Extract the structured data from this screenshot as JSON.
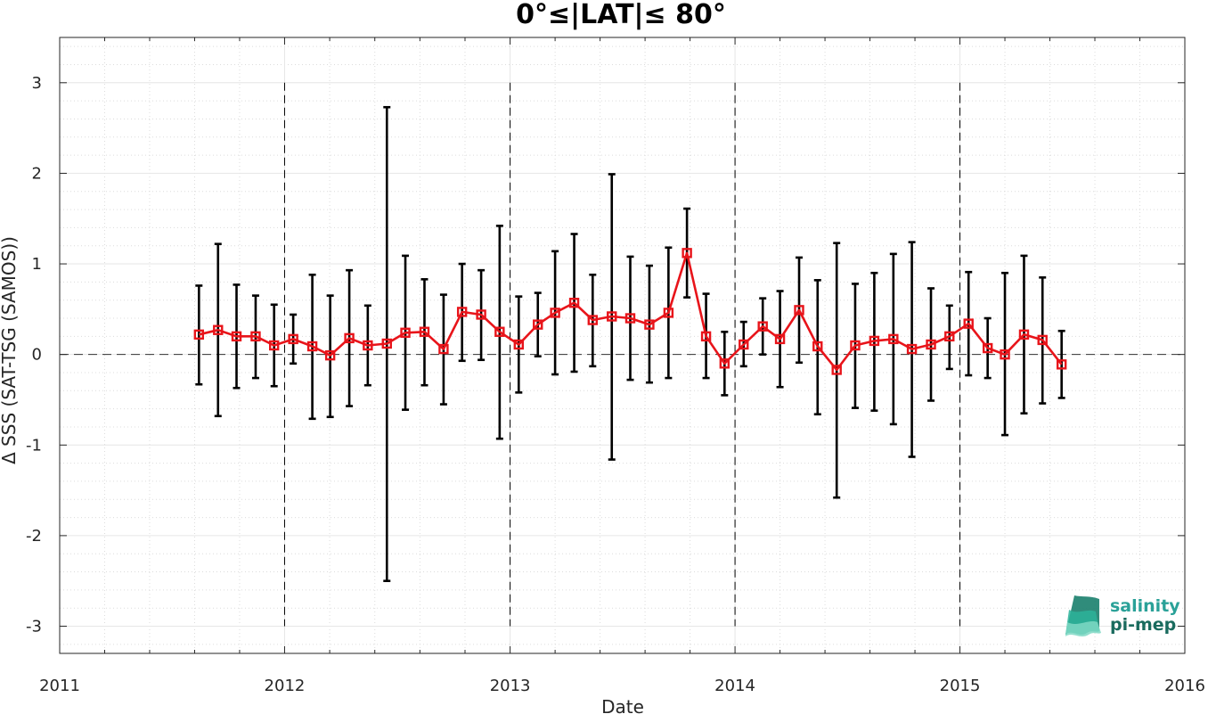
{
  "chart_data": {
    "type": "line",
    "title": "0°≤|LAT|≤ 80°",
    "xlabel": "Date",
    "ylabel": "Δ SSS (SAT-TSG (SAMOS))",
    "xlim": [
      "2011-01-01",
      "2016-01-01"
    ],
    "ylim": [
      -3.3,
      3.5
    ],
    "x_ticks": [
      "2011",
      "2012",
      "2013",
      "2014",
      "2015",
      "2016"
    ],
    "y_ticks": [
      -3,
      -2,
      -1,
      0,
      1,
      2,
      3
    ],
    "grid": true,
    "minor_grid": true,
    "zero_line": true,
    "year_separators": [
      "2012",
      "2013",
      "2014",
      "2015"
    ],
    "series": [
      {
        "color": "#e8141a",
        "marker": "square",
        "errorbar_color": "#000000",
        "x": [
          "2011-08-15",
          "2011-09-15",
          "2011-10-15",
          "2011-11-15",
          "2011-12-15",
          "2012-01-15",
          "2012-02-15",
          "2012-03-15",
          "2012-04-15",
          "2012-05-15",
          "2012-06-15",
          "2012-07-15",
          "2012-08-15",
          "2012-09-15",
          "2012-10-15",
          "2012-11-15",
          "2012-12-15",
          "2013-01-15",
          "2013-02-15",
          "2013-03-15",
          "2013-04-15",
          "2013-05-15",
          "2013-06-15",
          "2013-07-15",
          "2013-08-15",
          "2013-09-15",
          "2013-10-15",
          "2013-11-15",
          "2013-12-15",
          "2014-01-15",
          "2014-02-15",
          "2014-03-15",
          "2014-04-15",
          "2014-05-15",
          "2014-06-15",
          "2014-07-15",
          "2014-08-15",
          "2014-09-15",
          "2014-10-15",
          "2014-11-15",
          "2014-12-15",
          "2015-01-15",
          "2015-02-15",
          "2015-03-15",
          "2015-04-15",
          "2015-05-15",
          "2015-06-15"
        ],
        "values": [
          0.22,
          0.27,
          0.2,
          0.2,
          0.1,
          0.17,
          0.09,
          -0.01,
          0.18,
          0.1,
          0.12,
          0.24,
          0.25,
          0.06,
          0.47,
          0.44,
          0.25,
          0.11,
          0.33,
          0.46,
          0.57,
          0.38,
          0.42,
          0.4,
          0.33,
          0.46,
          1.12,
          0.2,
          -0.1,
          0.11,
          0.31,
          0.17,
          0.49,
          0.09,
          -0.17,
          0.1,
          0.15,
          0.17,
          0.06,
          0.11,
          0.2,
          0.34,
          0.07,
          0.0,
          0.22,
          0.16,
          -0.11
        ],
        "upper": [
          0.76,
          1.22,
          0.77,
          0.65,
          0.55,
          0.44,
          0.88,
          0.65,
          0.93,
          0.54,
          2.73,
          1.09,
          0.83,
          0.66,
          1.0,
          0.93,
          1.42,
          0.64,
          0.68,
          1.14,
          1.33,
          0.88,
          1.99,
          1.08,
          0.98,
          1.18,
          1.61,
          0.67,
          0.25,
          0.36,
          0.62,
          0.7,
          1.07,
          0.82,
          1.23,
          0.78,
          0.9,
          1.11,
          1.24,
          0.73,
          0.54,
          0.91,
          0.4,
          0.9,
          1.09,
          0.85,
          0.26
        ],
        "lower": [
          -0.33,
          -0.68,
          -0.37,
          -0.26,
          -0.35,
          -0.1,
          -0.71,
          -0.69,
          -0.57,
          -0.34,
          -2.5,
          -0.61,
          -0.34,
          -0.55,
          -0.07,
          -0.06,
          -0.93,
          -0.42,
          -0.02,
          -0.22,
          -0.19,
          -0.13,
          -1.16,
          -0.28,
          -0.31,
          -0.26,
          0.63,
          -0.26,
          -0.45,
          -0.13,
          0.0,
          -0.36,
          -0.09,
          -0.66,
          -1.58,
          -0.59,
          -0.62,
          -0.77,
          -1.13,
          -0.51,
          -0.16,
          -0.23,
          -0.26,
          -0.89,
          -0.65,
          -0.54,
          -0.48
        ]
      }
    ]
  },
  "logo": {
    "line1": "salinity",
    "line2": "pi-mep",
    "color": "#2aa198"
  }
}
